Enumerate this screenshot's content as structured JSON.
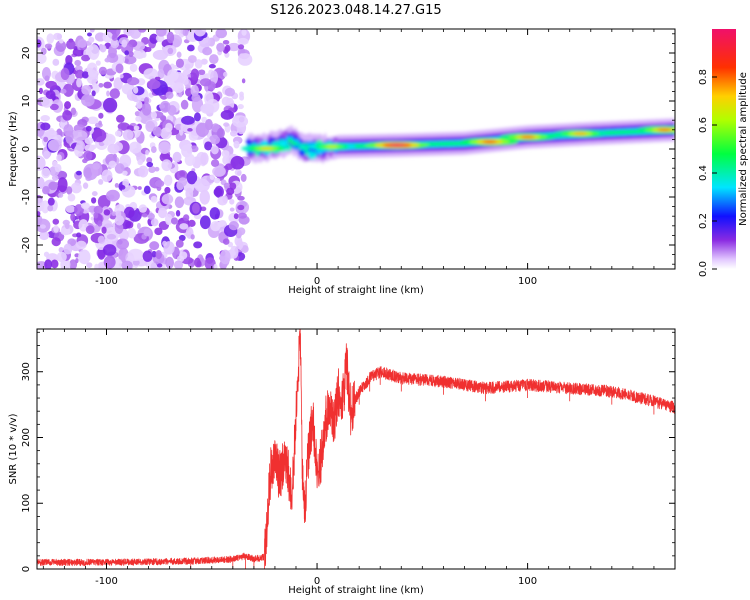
{
  "title": "S126.2023.048.14.27.G15",
  "chart_data": [
    {
      "type": "heatmap",
      "xlabel": "Height of straight line (km)",
      "ylabel": "Frequency (Hz)",
      "xlim": [
        -133,
        170
      ],
      "ylim": [
        -25,
        25
      ],
      "xticks": [
        -100,
        0,
        100
      ],
      "yticks": [
        -20,
        -10,
        0,
        10,
        20
      ],
      "colorbar": {
        "label": "Normalized spectral amplitude",
        "range": [
          0,
          1
        ],
        "ticks": [
          "0.0",
          "0.2",
          "0.4",
          "0.6",
          "0.8"
        ]
      },
      "noise_region_x": [
        -133,
        -34
      ],
      "ridge": [
        {
          "x": -33,
          "f": 0.0
        },
        {
          "x": -25,
          "f": 0.3
        },
        {
          "x": -18,
          "f": 1.0
        },
        {
          "x": -12,
          "f": 1.8
        },
        {
          "x": -6,
          "f": 0.0
        },
        {
          "x": 0,
          "f": 0.0
        },
        {
          "x": 10,
          "f": 0.5
        },
        {
          "x": 40,
          "f": 0.8
        },
        {
          "x": 70,
          "f": 1.2
        },
        {
          "x": 100,
          "f": 2.5
        },
        {
          "x": 130,
          "f": 3.2
        },
        {
          "x": 170,
          "f": 4.0
        }
      ],
      "ridge_peaks": [
        {
          "x": -24,
          "f": 0.1,
          "a": 0.7
        },
        {
          "x": 7,
          "f": 0.5,
          "a": 0.65
        },
        {
          "x": 38,
          "f": 0.8,
          "a": 1.0
        },
        {
          "x": 82,
          "f": 1.5,
          "a": 0.85
        },
        {
          "x": 100,
          "f": 2.5,
          "a": 0.8
        },
        {
          "x": 125,
          "f": 3.2,
          "a": 0.75
        },
        {
          "x": 165,
          "f": 4.0,
          "a": 0.8
        }
      ]
    },
    {
      "type": "line",
      "xlabel": "Height of straight line (km)",
      "ylabel": "SNR (10 * v/v)",
      "xlim": [
        -133,
        170
      ],
      "ylim": [
        0,
        365
      ],
      "xticks": [
        -100,
        0,
        100
      ],
      "yticks": [
        0,
        100,
        200,
        300
      ],
      "color": "#f03030",
      "series": [
        {
          "x": [
            -133,
            -100,
            -60,
            -40,
            -34,
            -30,
            -25,
            -24,
            -22,
            -20,
            -18,
            -16,
            -14,
            -12,
            -10,
            -9,
            -8,
            -7,
            -6,
            -4,
            -2,
            0,
            2,
            4,
            6,
            8,
            10,
            12,
            14,
            16,
            20,
            25,
            30,
            40,
            60,
            80,
            100,
            120,
            140,
            160,
            170
          ],
          "y": [
            10,
            10,
            12,
            15,
            20,
            15,
            18,
            60,
            150,
            175,
            140,
            160,
            150,
            110,
            230,
            290,
            365,
            140,
            90,
            180,
            230,
            150,
            170,
            230,
            240,
            220,
            270,
            250,
            315,
            240,
            270,
            290,
            300,
            290,
            285,
            275,
            280,
            275,
            270,
            255,
            245
          ]
        }
      ]
    }
  ]
}
